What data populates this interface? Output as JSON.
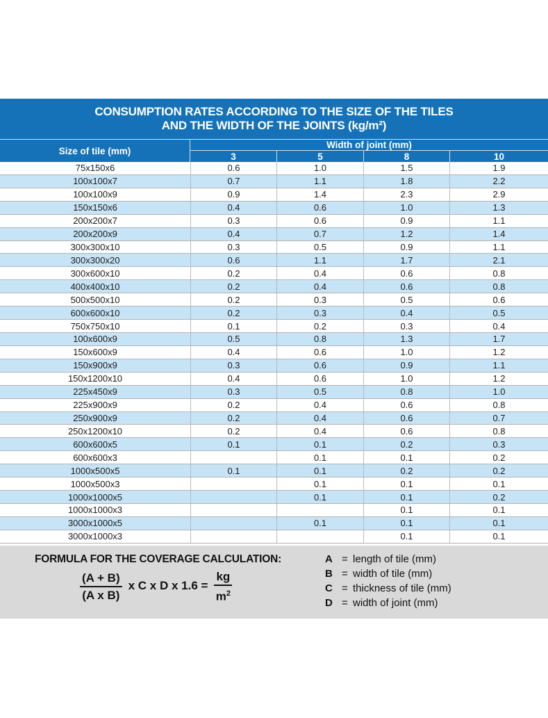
{
  "title": {
    "line1": "CONSUMPTION RATES ACCORDING TO THE SIZE OF THE TILES",
    "line2": "AND THE WIDTH OF THE JOINTS (kg/m²)"
  },
  "table": {
    "size_col_header": "Size of tile (mm)",
    "joint_header": "Width of joint (mm)",
    "joint_widths": [
      "3",
      "5",
      "8",
      "10"
    ],
    "rows": [
      {
        "size": "75x150x6",
        "values": [
          "0.6",
          "1.0",
          "1.5",
          "1.9"
        ]
      },
      {
        "size": "100x100x7",
        "values": [
          "0.7",
          "1.1",
          "1.8",
          "2.2"
        ]
      },
      {
        "size": "100x100x9",
        "values": [
          "0.9",
          "1.4",
          "2.3",
          "2.9"
        ]
      },
      {
        "size": "150x150x6",
        "values": [
          "0.4",
          "0.6",
          "1.0",
          "1.3"
        ]
      },
      {
        "size": "200x200x7",
        "values": [
          "0.3",
          "0.6",
          "0.9",
          "1.1"
        ]
      },
      {
        "size": "200x200x9",
        "values": [
          "0.4",
          "0.7",
          "1.2",
          "1.4"
        ]
      },
      {
        "size": "300x300x10",
        "values": [
          "0.3",
          "0.5",
          "0.9",
          "1.1"
        ]
      },
      {
        "size": "300x300x20",
        "values": [
          "0.6",
          "1.1",
          "1.7",
          "2.1"
        ]
      },
      {
        "size": "300x600x10",
        "values": [
          "0.2",
          "0.4",
          "0.6",
          "0.8"
        ]
      },
      {
        "size": "400x400x10",
        "values": [
          "0.2",
          "0.4",
          "0.6",
          "0.8"
        ]
      },
      {
        "size": "500x500x10",
        "values": [
          "0.2",
          "0.3",
          "0.5",
          "0.6"
        ]
      },
      {
        "size": "600x600x10",
        "values": [
          "0.2",
          "0.3",
          "0.4",
          "0.5"
        ]
      },
      {
        "size": "750x750x10",
        "values": [
          "0.1",
          "0.2",
          "0.3",
          "0.4"
        ]
      },
      {
        "size": "100x600x9",
        "values": [
          "0.5",
          "0.8",
          "1.3",
          "1.7"
        ]
      },
      {
        "size": "150x600x9",
        "values": [
          "0.4",
          "0.6",
          "1.0",
          "1.2"
        ]
      },
      {
        "size": "150x900x9",
        "values": [
          "0.3",
          "0.6",
          "0.9",
          "1.1"
        ]
      },
      {
        "size": "150x1200x10",
        "values": [
          "0.4",
          "0.6",
          "1.0",
          "1.2"
        ]
      },
      {
        "size": "225x450x9",
        "values": [
          "0.3",
          "0.5",
          "0.8",
          "1.0"
        ]
      },
      {
        "size": "225x900x9",
        "values": [
          "0.2",
          "0.4",
          "0.6",
          "0.8"
        ]
      },
      {
        "size": "250x900x9",
        "values": [
          "0.2",
          "0.4",
          "0.6",
          "0.7"
        ]
      },
      {
        "size": "250x1200x10",
        "values": [
          "0.2",
          "0.4",
          "0.6",
          "0.8"
        ]
      },
      {
        "size": "600x600x5",
        "values": [
          "0.1",
          "0.1",
          "0.2",
          "0.3"
        ]
      },
      {
        "size": "600x600x3",
        "values": [
          "",
          "0.1",
          "0.1",
          "0.2"
        ]
      },
      {
        "size": "1000x500x5",
        "values": [
          "0.1",
          "0.1",
          "0.2",
          "0.2"
        ]
      },
      {
        "size": "1000x500x3",
        "values": [
          "",
          "0.1",
          "0.1",
          "0.1"
        ]
      },
      {
        "size": "1000x1000x5",
        "values": [
          "",
          "0.1",
          "0.1",
          "0.2"
        ]
      },
      {
        "size": "1000x1000x3",
        "values": [
          "",
          "",
          "0.1",
          "0.1"
        ]
      },
      {
        "size": "3000x1000x5",
        "values": [
          "",
          "0.1",
          "0.1",
          "0.1"
        ]
      },
      {
        "size": "3000x1000x3",
        "values": [
          "",
          "",
          "0.1",
          "0.1"
        ]
      }
    ]
  },
  "formula": {
    "heading": "FORMULA FOR THE COVERAGE CALCULATION:",
    "frac1_top": "(A + B)",
    "frac1_bottom": "(A x B)",
    "middle": "x C x D x 1.6 =",
    "frac2_top": "kg",
    "frac2_bottom_base": "m",
    "frac2_bottom_sup": "2",
    "equals": "=",
    "legend": [
      {
        "symbol": "A",
        "definition": "length of tile (mm)"
      },
      {
        "symbol": "B",
        "definition": "width of tile (mm)"
      },
      {
        "symbol": "C",
        "definition": "thickness of tile (mm)"
      },
      {
        "symbol": "D",
        "definition": "width of joint (mm)"
      }
    ]
  },
  "colors": {
    "header_blue": "#1672b8",
    "row_alt_blue": "#c7e4f6",
    "formula_bg": "#d9d9d9",
    "row_line": "#b3b3b3"
  }
}
